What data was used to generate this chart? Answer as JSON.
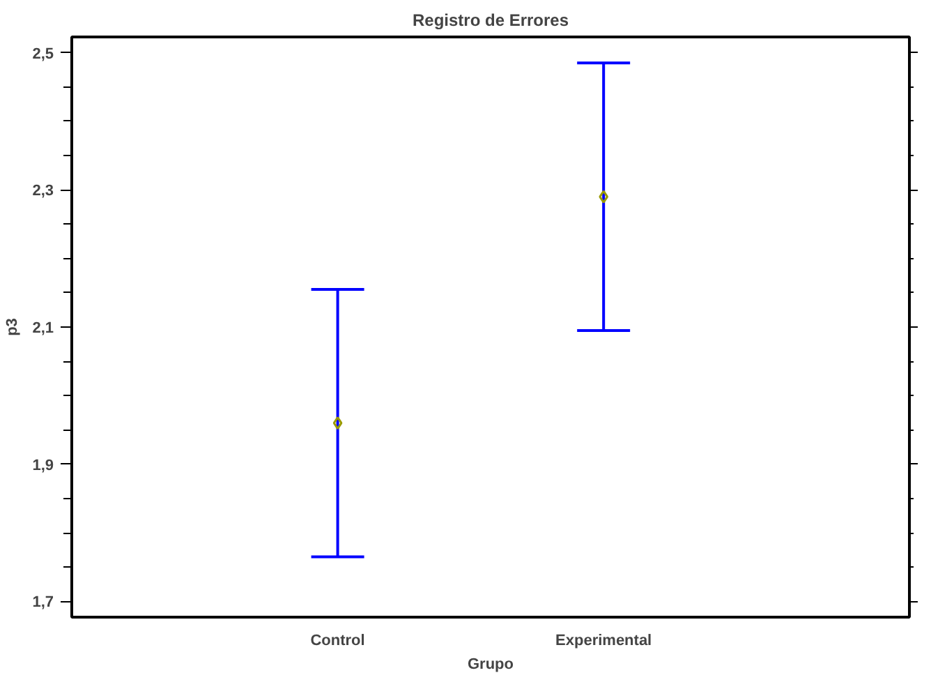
{
  "chart_data": {
    "type": "scatter",
    "title": "Registro de Errores",
    "xlabel": "Grupo",
    "ylabel": "p3",
    "categories": [
      "Control",
      "Experimental"
    ],
    "series": [
      {
        "color": "#999900",
        "values": [
          1.96,
          2.29
        ],
        "errors": [
          0.195,
          0.195
        ]
      }
    ],
    "marker": "diamond",
    "ylim": [
      1.677,
      2.523
    ],
    "yticks": [
      {
        "value": 1.7,
        "label": "1,7"
      },
      {
        "value": 1.9,
        "label": "1,9"
      },
      {
        "value": 2.1,
        "label": "2,1"
      },
      {
        "value": 2.3,
        "label": "2,3"
      },
      {
        "value": 2.5,
        "label": "2,5"
      }
    ],
    "grid": false
  }
}
